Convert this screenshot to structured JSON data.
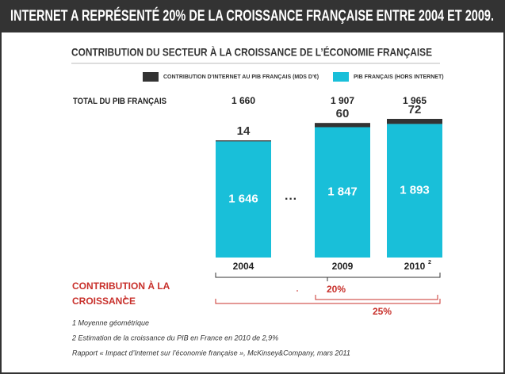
{
  "chart_data": {
    "type": "stacked_bar",
    "title": "INTERNET A REPRÉSENTÉ 20% DE LA CROISSANCE FRANÇAISE ENTRE 2004 ET 2009.",
    "subtitle": "CONTRIBUTION DU SECTEUR À LA CROISSANCE DE L’ÉCONOMIE FRANÇAISE",
    "total_title": "TOTAL DU PIB FRANÇAIS",
    "categories": [
      "2004",
      "2009",
      "2010"
    ],
    "category_superscripts": [
      null,
      null,
      "2"
    ],
    "totals": [
      {
        "value": 1660,
        "label": "1 660"
      },
      {
        "value": 1907,
        "label": "1 907"
      },
      {
        "value": 1965,
        "label": "1 965"
      }
    ],
    "series": [
      {
        "name": "PIB FRANÇAIS (HORS INTERNET)",
        "color": "#19bfd9",
        "values": [
          1646,
          1847,
          1893
        ],
        "value_labels": [
          "1 646",
          "1 847",
          "1 893"
        ]
      },
      {
        "name": "CONTRIBUTION D’INTERNET AU PIB FRANÇAIS (MDS D’€)",
        "color": "#333333",
        "values": [
          14,
          60,
          72
        ]
      }
    ],
    "growth_title": [
      "CONTRIBUTION À LA",
      "CROISSANCE"
    ],
    "growth_title_superscript": "1",
    "growth_labels": [
      "20%",
      "25%"
    ],
    "footnotes": [
      "1 Moyenne géométrique",
      "2 Estimation de la croissance du PIB en France en 2010 de 2,9%",
      "Rapport « Impact d’Internet sur l’économie française », McKinsey&Company, mars 2011"
    ]
  }
}
